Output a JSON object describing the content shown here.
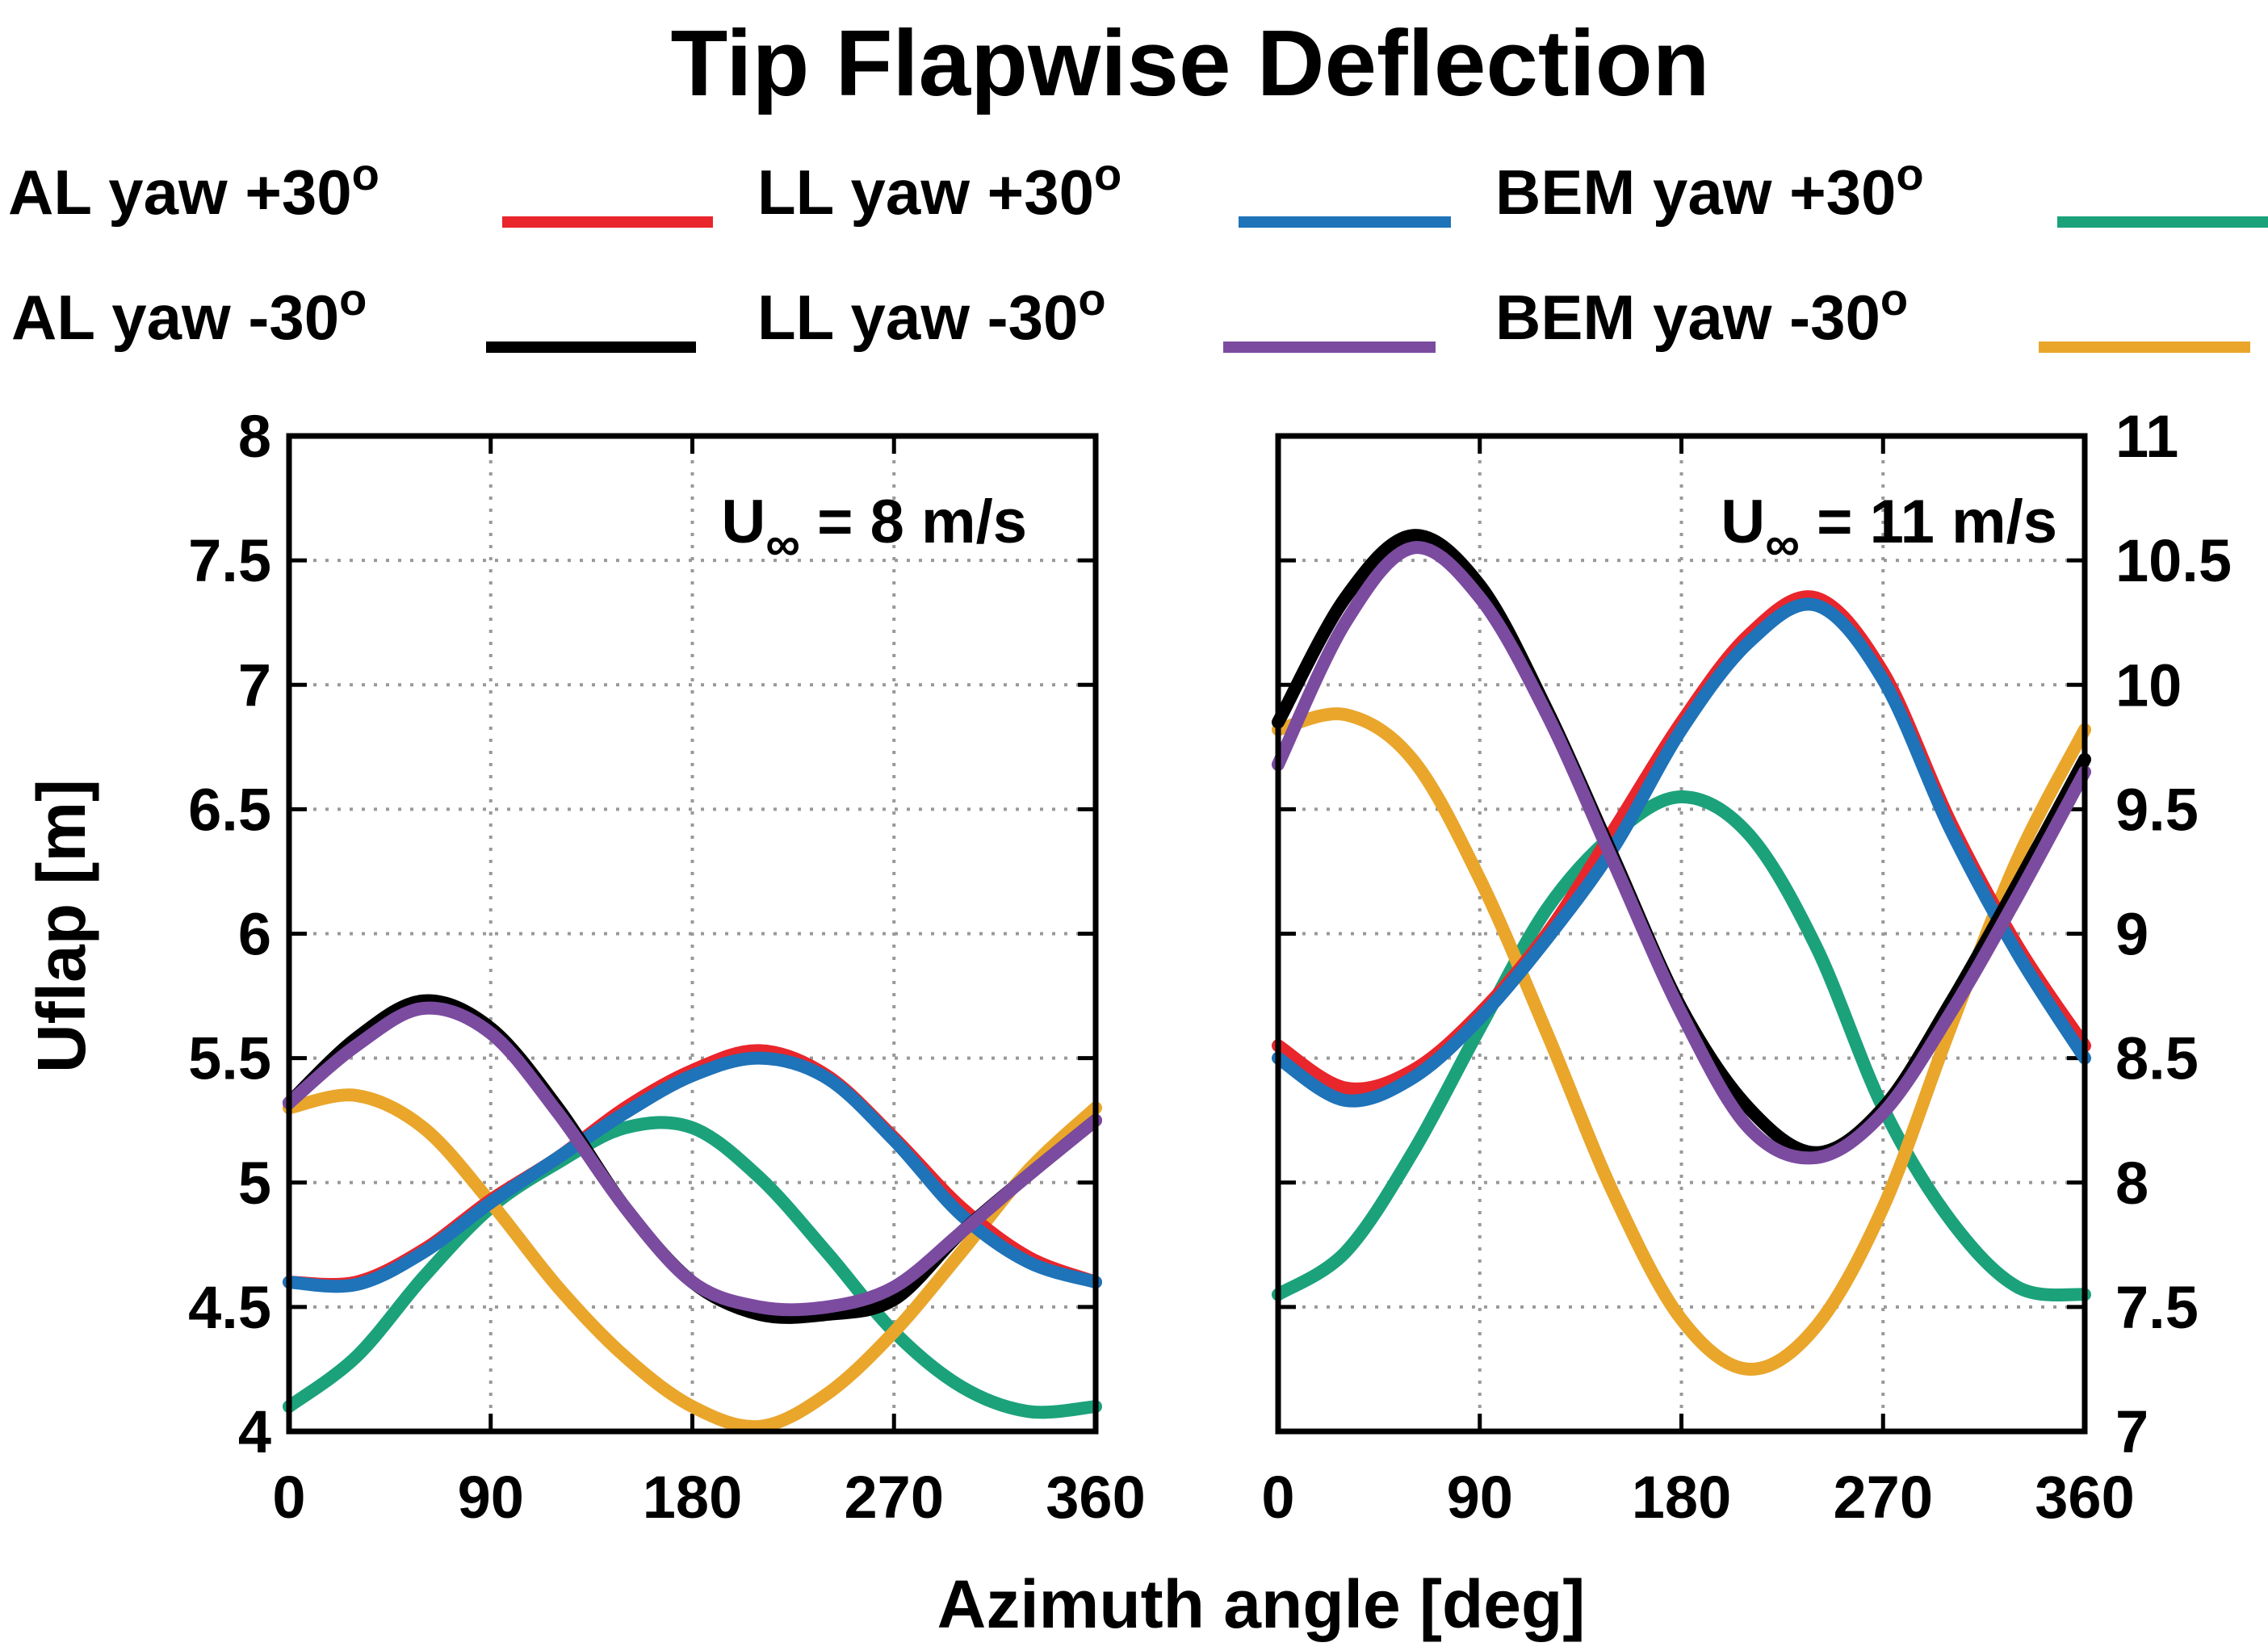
{
  "title": "Tip Flapwise Deflection",
  "legend": [
    {
      "id": "al_p30",
      "label": "AL yaw +30",
      "sup": "o",
      "color": "#e8262c"
    },
    {
      "id": "ll_p30",
      "label": "LL yaw +30",
      "sup": "o",
      "color": "#1e73b9"
    },
    {
      "id": "bem_p30",
      "label": "BEM yaw +30",
      "sup": "o",
      "color": "#1ba27b"
    },
    {
      "id": "al_m30",
      "label": "AL yaw -30",
      "sup": "o",
      "color": "#000000"
    },
    {
      "id": "ll_m30",
      "label": "LL yaw -30",
      "sup": "o",
      "color": "#7b4ba0"
    },
    {
      "id": "bem_m30",
      "label": "BEM yaw -30",
      "sup": "o",
      "color": "#e9a62b"
    }
  ],
  "xlabel": "Azimuth angle [deg]",
  "ylabel": "Uflap [m]",
  "chart_data": [
    {
      "type": "line",
      "annotation": {
        "main": "U",
        "sub": "∞",
        "rest": " = 8 m/s"
      },
      "xlim": [
        0,
        360
      ],
      "ylim": [
        4,
        8
      ],
      "xticks": [
        "0",
        "90",
        "180",
        "270",
        "360"
      ],
      "yticks": [
        "4",
        "4.5",
        "5",
        "5.5",
        "6",
        "6.5",
        "7",
        "7.5",
        "8"
      ],
      "y_axis_side": "left",
      "grid": true,
      "x": [
        0,
        30,
        60,
        90,
        120,
        150,
        180,
        210,
        240,
        270,
        300,
        330,
        360
      ],
      "series": [
        {
          "name": "AL yaw +30",
          "values": [
            4.6,
            4.6,
            4.73,
            4.93,
            5.1,
            5.3,
            5.45,
            5.53,
            5.43,
            5.18,
            4.9,
            4.7,
            4.6
          ]
        },
        {
          "name": "LL yaw +30",
          "values": [
            4.6,
            4.59,
            4.72,
            4.92,
            5.1,
            5.28,
            5.43,
            5.5,
            5.42,
            5.17,
            4.87,
            4.68,
            4.6
          ]
        },
        {
          "name": "BEM yaw +30",
          "values": [
            4.1,
            4.3,
            4.62,
            4.9,
            5.08,
            5.22,
            5.22,
            5.02,
            4.72,
            4.4,
            4.18,
            4.08,
            4.1
          ]
        },
        {
          "name": "AL yaw -30",
          "values": [
            5.32,
            5.58,
            5.73,
            5.62,
            5.3,
            4.9,
            4.6,
            4.47,
            4.47,
            4.53,
            4.8,
            5.03,
            5.25
          ]
        },
        {
          "name": "LL yaw -30",
          "values": [
            5.32,
            5.55,
            5.7,
            5.6,
            5.28,
            4.9,
            4.6,
            4.5,
            4.5,
            4.58,
            4.8,
            5.03,
            5.25
          ]
        },
        {
          "name": "BEM yaw -30",
          "values": [
            5.3,
            5.35,
            5.22,
            4.92,
            4.58,
            4.3,
            4.1,
            4.02,
            4.15,
            4.4,
            4.72,
            5.05,
            5.3
          ]
        }
      ]
    },
    {
      "type": "line",
      "annotation": {
        "main": "U",
        "sub": "∞",
        "rest": " = 11 m/s"
      },
      "xlim": [
        0,
        360
      ],
      "ylim": [
        7,
        11
      ],
      "xticks": [
        "0",
        "90",
        "180",
        "270",
        "360"
      ],
      "yticks": [
        "7",
        "7.5",
        "8",
        "8.5",
        "9",
        "9.5",
        "10",
        "10.5",
        "11"
      ],
      "y_axis_side": "right",
      "grid": true,
      "x": [
        0,
        30,
        60,
        90,
        120,
        150,
        180,
        210,
        240,
        270,
        300,
        330,
        360
      ],
      "series": [
        {
          "name": "AL yaw +30",
          "values": [
            8.55,
            8.38,
            8.45,
            8.68,
            9.0,
            9.42,
            9.85,
            10.2,
            10.35,
            10.05,
            9.45,
            8.95,
            8.55
          ]
        },
        {
          "name": "LL yaw +30",
          "values": [
            8.5,
            8.33,
            8.42,
            8.66,
            8.98,
            9.35,
            9.82,
            10.17,
            10.32,
            10.02,
            9.42,
            8.92,
            8.5
          ]
        },
        {
          "name": "BEM yaw +30",
          "values": [
            7.55,
            7.72,
            8.12,
            8.62,
            9.1,
            9.4,
            9.55,
            9.4,
            8.95,
            8.3,
            7.85,
            7.58,
            7.55
          ]
        },
        {
          "name": "AL yaw -30",
          "values": [
            9.85,
            10.35,
            10.6,
            10.4,
            9.9,
            9.3,
            8.7,
            8.3,
            8.12,
            8.3,
            8.72,
            9.2,
            9.7
          ]
        },
        {
          "name": "LL yaw -30",
          "values": [
            9.68,
            10.25,
            10.55,
            10.35,
            9.88,
            9.28,
            8.68,
            8.22,
            8.1,
            8.28,
            8.68,
            9.15,
            9.65
          ]
        },
        {
          "name": "BEM yaw -30",
          "values": [
            9.82,
            9.88,
            9.7,
            9.22,
            8.6,
            7.95,
            7.45,
            7.25,
            7.42,
            7.9,
            8.62,
            9.3,
            9.82
          ]
        }
      ]
    }
  ]
}
